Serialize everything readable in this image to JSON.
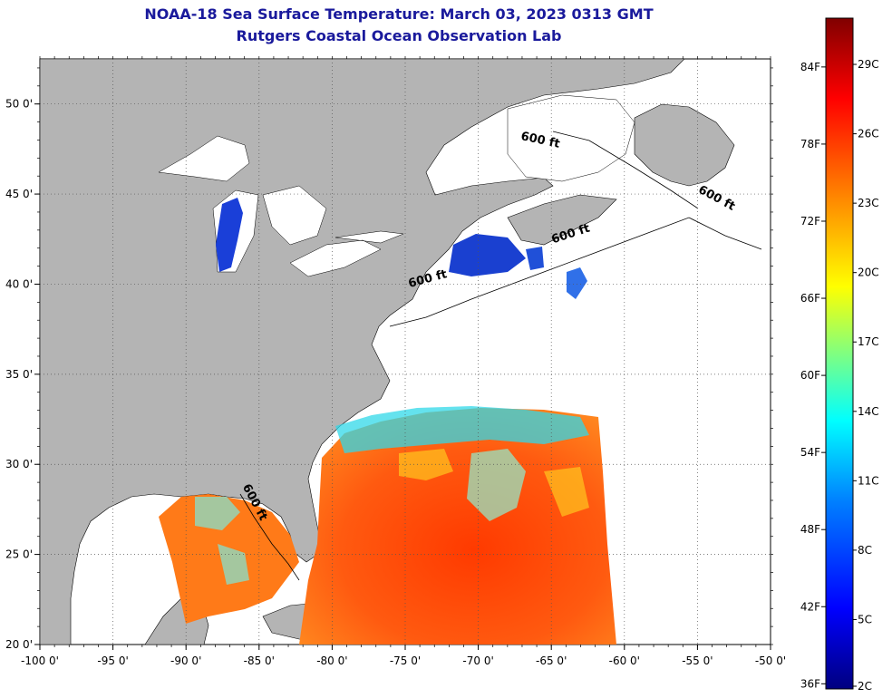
{
  "header": {
    "title": "NOAA-18 Sea Surface Temperature:  March 03, 2023 0313 GMT",
    "subtitle": "Rutgers Coastal Ocean Observation Lab"
  },
  "axes": {
    "x_ticks": [
      "-100 0'",
      "-95 0'",
      "-90 0'",
      "-85 0'",
      "-80 0'",
      "-75 0'",
      "-70 0'",
      "-65 0'",
      "-60 0'",
      "-55 0'",
      "-50 0'"
    ],
    "x_values": [
      -100,
      -95,
      -90,
      -85,
      -80,
      -75,
      -70,
      -65,
      -60,
      -55,
      -50
    ],
    "y_ticks": [
      "20 0'",
      "25 0'",
      "30 0'",
      "35 0'",
      "40 0'",
      "45 0'",
      "50 0'"
    ],
    "y_values": [
      20,
      25,
      30,
      35,
      40,
      45,
      50
    ],
    "lon_range": [
      -100,
      -50
    ],
    "lat_range": [
      20,
      52.5
    ],
    "grid": "dotted"
  },
  "colorbar": {
    "fahrenheit_labels": [
      "84F",
      "78F",
      "72F",
      "66F",
      "60F",
      "54F",
      "48F",
      "42F",
      "36F"
    ],
    "fahrenheit_values": [
      84,
      78,
      72,
      66,
      60,
      54,
      48,
      42,
      36
    ],
    "celsius_labels": [
      "29C",
      "26C",
      "23C",
      "20C",
      "17C",
      "14C",
      "11C",
      "8C",
      "5C",
      "2C"
    ],
    "celsius_values": [
      29,
      26,
      23,
      20,
      17,
      14,
      11,
      8,
      5,
      2
    ],
    "range_c": [
      2,
      31
    ],
    "colors": [
      "#00007f",
      "#0000ff",
      "#0080ff",
      "#00ffff",
      "#80ff80",
      "#ffff00",
      "#ff8000",
      "#ff0000",
      "#800000"
    ]
  },
  "contours": [
    {
      "label": "600 ft",
      "lon": -65.8,
      "lat": 47.8,
      "angle": 12
    },
    {
      "label": "600 ft",
      "lon": -53.8,
      "lat": 44.6,
      "angle": 28
    },
    {
      "label": "600 ft",
      "lon": -63.6,
      "lat": 42.6,
      "angle": -18
    },
    {
      "label": "600 ft",
      "lon": -73.4,
      "lat": 40.1,
      "angle": -15
    },
    {
      "label": "600 ft",
      "lon": -85.5,
      "lat": 27.8,
      "angle": 62
    }
  ],
  "colors": {
    "land": "#b4b4b4",
    "ocean_no_data": "#ffffff",
    "title": "#1a1a9c"
  }
}
